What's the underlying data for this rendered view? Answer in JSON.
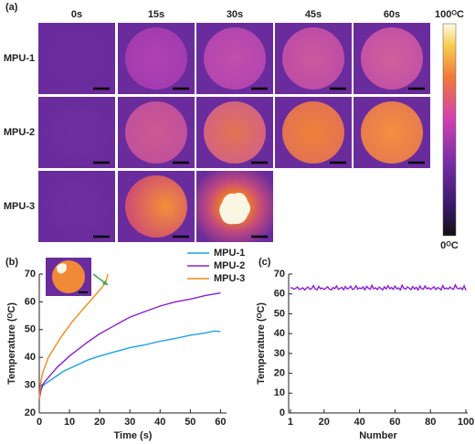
{
  "panel_a": {
    "label": "(a)",
    "columns": [
      "0s",
      "15s",
      "30s",
      "45s",
      "60s"
    ],
    "rows": [
      "MPU-1",
      "MPU-2",
      "MPU-3"
    ],
    "colorbar": {
      "max_label": "100ᴼC",
      "min_label": "0ᴼC"
    }
  },
  "chart_data": [
    {
      "type": "line",
      "label": "(b)",
      "x_label": "Time (s)",
      "y_label": "Temperature (ᴼC)",
      "xlim": [
        0,
        62
      ],
      "ylim": [
        20,
        70
      ],
      "xticks": [
        0,
        10,
        20,
        30,
        40,
        50,
        60
      ],
      "yticks": [
        20,
        30,
        40,
        50,
        60,
        70
      ],
      "legend": "upper right",
      "series": [
        {
          "name": "MPU-1",
          "color": "#1aa3e8",
          "x": [
            0,
            0.5,
            1,
            2,
            4,
            6,
            8,
            10,
            13,
            16,
            20,
            25,
            30,
            35,
            40,
            45,
            50,
            55,
            58,
            60
          ],
          "values": [
            25,
            28,
            29.5,
            30.5,
            32,
            33.5,
            35,
            36,
            37.5,
            39,
            40.5,
            42,
            43.5,
            44.5,
            45.8,
            46.8,
            48,
            48.8,
            49.5,
            49.3
          ]
        },
        {
          "name": "MPU-2",
          "color": "#8b1fd6",
          "x": [
            0,
            0.5,
            1,
            2,
            4,
            6,
            8,
            10,
            13,
            16,
            20,
            25,
            30,
            35,
            40,
            45,
            50,
            55,
            60
          ],
          "values": [
            25,
            28,
            30,
            31.5,
            34,
            36.5,
            38.5,
            40.5,
            43,
            45.5,
            48.5,
            51.5,
            54.5,
            56.5,
            58.5,
            60,
            61,
            62.3,
            63.2
          ]
        },
        {
          "name": "MPU-3",
          "color": "#f08a1c",
          "x": [
            0,
            0.5,
            1,
            2,
            3,
            5,
            7,
            9,
            11,
            13,
            15,
            17,
            19,
            21,
            22,
            22.7
          ],
          "values": [
            25,
            31,
            34,
            37,
            40,
            43.5,
            47,
            50,
            53,
            55.5,
            58,
            60.5,
            63,
            65.5,
            67,
            70
          ]
        }
      ]
    },
    {
      "type": "line",
      "label": "(c)",
      "x_label": "Number",
      "y_label": "Temperature (ᴼC)",
      "xlim": [
        0,
        101
      ],
      "ylim": [
        0,
        70
      ],
      "xticks": [
        1,
        20,
        40,
        60,
        80,
        100
      ],
      "yticks": [
        0,
        10,
        20,
        30,
        40,
        50,
        60,
        70
      ],
      "series": [
        {
          "color": "#8b1fd6",
          "x": [
            1,
            2,
            3,
            4,
            5,
            6,
            7,
            8,
            9,
            10,
            11,
            12,
            13,
            14,
            15,
            16,
            17,
            18,
            19,
            20,
            21,
            22,
            23,
            24,
            25,
            26,
            27,
            28,
            29,
            30,
            31,
            32,
            33,
            34,
            35,
            36,
            37,
            38,
            39,
            40,
            41,
            42,
            43,
            44,
            45,
            46,
            47,
            48,
            49,
            50,
            51,
            52,
            53,
            54,
            55,
            56,
            57,
            58,
            59,
            60,
            61,
            62,
            63,
            64,
            65,
            66,
            67,
            68,
            69,
            70,
            71,
            72,
            73,
            74,
            75,
            76,
            77,
            78,
            79,
            80,
            81,
            82,
            83,
            84,
            85,
            86,
            87,
            88,
            89,
            90,
            91,
            92,
            93,
            94,
            95,
            96,
            97,
            98,
            99,
            100
          ],
          "values": [
            63.2,
            63.0,
            62.4,
            62.8,
            63.5,
            62.2,
            62.6,
            63.1,
            62.0,
            62.9,
            63.4,
            62.3,
            62.7,
            64.2,
            62.5,
            62.1,
            63.8,
            62.6,
            63.0,
            62.2,
            62.9,
            63.6,
            62.4,
            62.0,
            63.2,
            62.7,
            64.0,
            62.3,
            62.8,
            63.3,
            62.1,
            63.7,
            62.5,
            62.9,
            63.9,
            62.2,
            62.6,
            64.1,
            62.4,
            63.0,
            62.7,
            63.5,
            62.1,
            63.8,
            62.9,
            62.3,
            64.3,
            62.6,
            63.1,
            62.2,
            63.4,
            62.8,
            62.0,
            63.6,
            62.5,
            64.1,
            62.7,
            63.2,
            62.3,
            63.9,
            62.6,
            63.0,
            62.1,
            64.4,
            62.8,
            62.4,
            63.5,
            62.9,
            62.2,
            63.7,
            62.5,
            63.3,
            62.0,
            63.9,
            62.7,
            62.4,
            64.0,
            62.6,
            63.1,
            62.3,
            62.9,
            63.6,
            62.2,
            63.2,
            62.8,
            62.1,
            64.2,
            62.5,
            63.0,
            62.4,
            63.5,
            62.7,
            62.3,
            64.5,
            62.9,
            62.6,
            63.1,
            62.2,
            64.0,
            61.8
          ]
        }
      ]
    }
  ]
}
